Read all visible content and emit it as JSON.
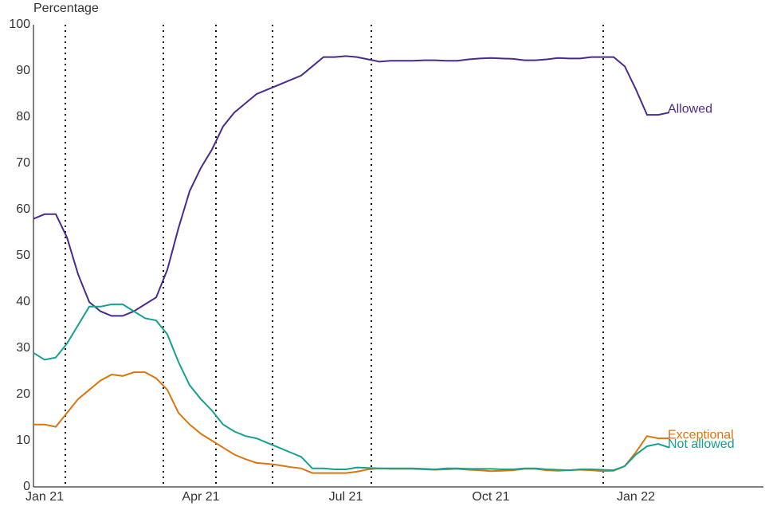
{
  "chart_data": {
    "type": "line",
    "y_label": "Percentage",
    "categories": [
      null,
      "Jan 21",
      null,
      null,
      null,
      null,
      null,
      null,
      null,
      null,
      null,
      null,
      null,
      null,
      null,
      "Apr 21",
      null,
      null,
      null,
      null,
      null,
      null,
      null,
      null,
      null,
      null,
      null,
      null,
      "Jul 21",
      null,
      null,
      null,
      null,
      null,
      null,
      null,
      null,
      null,
      null,
      null,
      null,
      "Oct 21",
      null,
      null,
      null,
      null,
      null,
      null,
      null,
      null,
      null,
      null,
      null,
      null,
      "Jan 22",
      null,
      null,
      null
    ],
    "series": [
      {
        "name": "Allowed",
        "color": "#4b2a8e",
        "values": [
          58,
          59,
          59,
          54,
          46,
          40,
          38,
          37,
          37,
          38,
          39.5,
          41,
          47,
          56,
          64,
          69,
          73,
          78,
          81,
          83,
          85,
          86,
          87,
          88,
          89,
          91,
          93,
          93,
          93.2,
          93,
          92.5,
          92,
          92.2,
          92.2,
          92.2,
          92.3,
          92.3,
          92.2,
          92.2,
          92.5,
          92.7,
          92.8,
          92.7,
          92.6,
          92.3,
          92.3,
          92.5,
          92.8,
          92.7,
          92.7,
          93,
          93,
          93,
          91,
          86,
          80.5,
          80.5,
          81
        ]
      },
      {
        "name": "Exceptional",
        "color": "#d9760f",
        "values": [
          13.5,
          13.5,
          13,
          16,
          19,
          21,
          23,
          24.3,
          24,
          24.8,
          24.8,
          23.5,
          21,
          16,
          13.5,
          11.5,
          10,
          8.5,
          7,
          6,
          5.2,
          5,
          4.7,
          4.3,
          4,
          3,
          3,
          3,
          3,
          3.3,
          3.8,
          4,
          3.9,
          3.9,
          3.9,
          3.8,
          3.7,
          3.8,
          3.9,
          3.7,
          3.6,
          3.4,
          3.5,
          3.6,
          3.9,
          3.9,
          3.6,
          3.5,
          3.6,
          3.7,
          3.6,
          3.4,
          3.5,
          4.5,
          7.5,
          11,
          10.5,
          10.5
        ]
      },
      {
        "name": "Not allowed",
        "color": "#16a08e",
        "values": [
          29,
          27.5,
          28,
          31,
          35,
          39,
          39,
          39.5,
          39.5,
          38,
          36.5,
          36,
          33,
          27,
          22,
          19,
          16.5,
          13.5,
          12,
          11,
          10.5,
          9.5,
          8.5,
          7.5,
          6.5,
          4,
          4,
          3.8,
          3.8,
          4.2,
          4.1,
          4,
          4,
          4,
          4,
          3.9,
          3.8,
          4,
          4,
          3.9,
          3.9,
          3.9,
          3.8,
          3.8,
          4,
          4,
          3.8,
          3.7,
          3.6,
          3.8,
          3.8,
          3.7,
          3.6,
          4.5,
          7,
          8.8,
          9.3,
          8.5
        ]
      }
    ],
    "ylim": [
      0,
      100
    ],
    "yticks": [
      0,
      10,
      20,
      30,
      40,
      50,
      60,
      70,
      80,
      90,
      100
    ],
    "grid": false
  }
}
